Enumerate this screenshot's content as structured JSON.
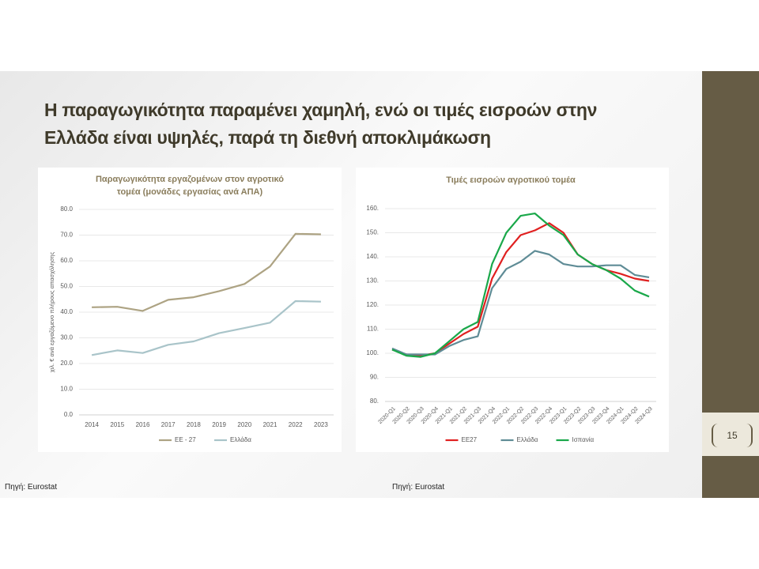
{
  "title": "Η παραγωγικότητα παραμένει χαμηλή, ενώ οι τιμές εισροών στην Ελλάδα είναι υψηλές, παρά τη διεθνή αποκλιμάκωση",
  "sources": [
    "Πηγή: Eurostat",
    "Πηγή: Eurostat"
  ],
  "page_number": "15",
  "chart_data": [
    {
      "type": "line",
      "title": "Παραγωγικότητα εργαζομένων στον αγροτικό τομέα (μονάδες εργασίας ανά ΑΠΑ)",
      "y_label": "χιλ. € ανά εργαζόμενο πλήρους απασχόλησης",
      "categories": [
        "2014",
        "2015",
        "2016",
        "2017",
        "2018",
        "2019",
        "2020",
        "2021",
        "2022",
        "2023"
      ],
      "series": [
        {
          "name": "ΕΕ - 27",
          "color": "#ada383",
          "values": [
            41.9,
            42.1,
            40.5,
            44.8,
            45.8,
            48.2,
            51.0,
            57.8,
            70.5,
            70.3
          ]
        },
        {
          "name": "Ελλάδα",
          "color": "#a9c4c9",
          "values": [
            23.3,
            25.1,
            24.1,
            27.3,
            28.6,
            31.8,
            33.8,
            35.9,
            44.3,
            44.1
          ]
        }
      ],
      "ylim": [
        0,
        80
      ],
      "yticks": [
        {
          "value": 0,
          "label": "0.0"
        },
        {
          "value": 10,
          "label": "10.0"
        },
        {
          "value": 20,
          "label": "20.0"
        },
        {
          "value": 30,
          "label": "30.0"
        },
        {
          "value": 40,
          "label": "40.0"
        },
        {
          "value": 50,
          "label": "50.0"
        },
        {
          "value": 60,
          "label": "60.0"
        },
        {
          "value": 70,
          "label": "70.0"
        },
        {
          "value": 80,
          "label": "80.0"
        }
      ],
      "grid": true,
      "legend": "bottom"
    },
    {
      "type": "line",
      "title": "Τιμές εισροών αγροτικού τομέα",
      "categories": [
        "2020-Q1",
        "2020-Q2",
        "2020-Q3",
        "2020-Q4",
        "2021-Q1",
        "2021-Q2",
        "2021-Q3",
        "2021-Q4",
        "2022-Q1",
        "2022-Q2",
        "2022-Q3",
        "2022-Q4",
        "2023-Q1",
        "2023-Q2",
        "2023-Q3",
        "2023-Q4",
        "2024-Q1",
        "2024-Q2",
        "2024-Q3"
      ],
      "series": [
        {
          "name": "ΕΕ27",
          "color": "#e02020",
          "values": [
            101.5,
            99.5,
            99,
            100,
            104,
            108,
            111,
            131,
            142,
            149,
            151,
            154,
            150,
            141,
            137,
            134.5,
            133,
            131,
            130
          ]
        },
        {
          "name": "Ελλάδα",
          "color": "#5f8c96",
          "values": [
            102,
            99.5,
            99.5,
            99.5,
            103,
            105.5,
            107,
            127,
            135,
            138,
            142.5,
            141,
            137,
            136,
            136,
            136.5,
            136.5,
            132.5,
            131.5
          ]
        },
        {
          "name": "Ισπανία",
          "color": "#1aa84a",
          "values": [
            101.5,
            99,
            98.5,
            100,
            105,
            110,
            113,
            137,
            150,
            157,
            158,
            153,
            149,
            141,
            137,
            134.5,
            131,
            126,
            123.5
          ]
        }
      ],
      "ylim": [
        80,
        160
      ],
      "yticks": [
        {
          "value": 80,
          "label": "80."
        },
        {
          "value": 90,
          "label": "90."
        },
        {
          "value": 100,
          "label": "100."
        },
        {
          "value": 110,
          "label": "110."
        },
        {
          "value": 120,
          "label": "120."
        },
        {
          "value": 130,
          "label": "130."
        },
        {
          "value": 140,
          "label": "140."
        },
        {
          "value": 150,
          "label": "150."
        },
        {
          "value": 160,
          "label": "160."
        }
      ],
      "grid": true,
      "legend": "bottom"
    }
  ]
}
